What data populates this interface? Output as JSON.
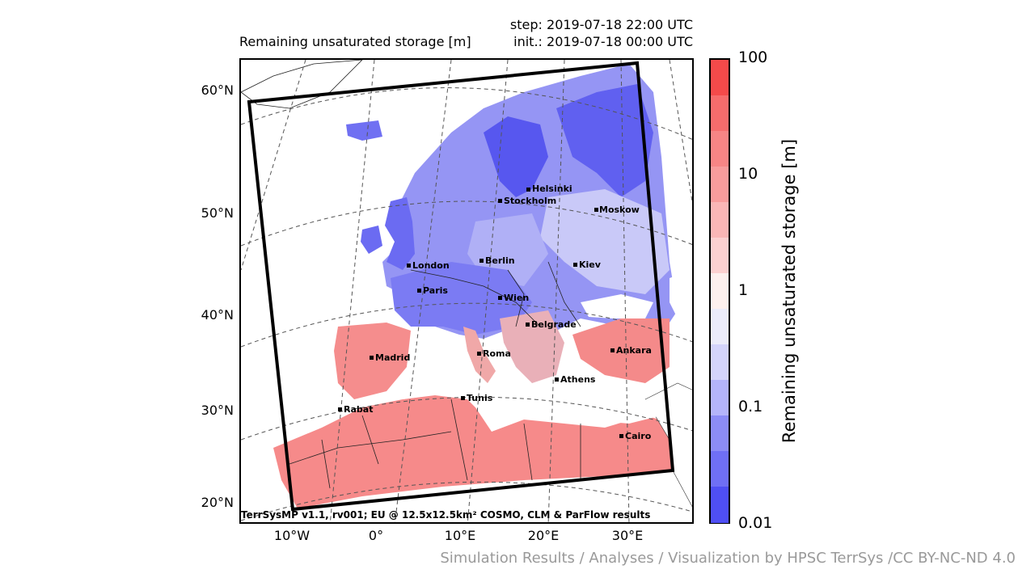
{
  "header": {
    "title": "Remaining unsaturated storage [m]",
    "step": "step: 2019-07-18 22:00 UTC",
    "init": "init.: 2019-07-18 00:00 UTC"
  },
  "map": {
    "lat_labels": [
      "60°N",
      "50°N",
      "40°N",
      "30°N",
      "20°N"
    ],
    "lon_labels": [
      "10°W",
      "0°",
      "10°E",
      "20°E",
      "30°E"
    ],
    "cities": [
      {
        "name": "Helsinki"
      },
      {
        "name": "Stockholm"
      },
      {
        "name": "Moskow"
      },
      {
        "name": "London"
      },
      {
        "name": "Berlin"
      },
      {
        "name": "Kiev"
      },
      {
        "name": "Paris"
      },
      {
        "name": "Wien"
      },
      {
        "name": "Belgrade"
      },
      {
        "name": "Madrid"
      },
      {
        "name": "Roma"
      },
      {
        "name": "Ankara"
      },
      {
        "name": "Athens"
      },
      {
        "name": "Tunis"
      },
      {
        "name": "Rabat"
      },
      {
        "name": "Cairo"
      }
    ],
    "footer": "TerrSysMP v1.1, rv001; EU @ 12.5x12.5km² COSMO, CLM & ParFlow results"
  },
  "colorbar": {
    "label": "Remaining unsaturated storage [m]",
    "ticks": [
      "100",
      "10",
      "1",
      "0.1",
      "0.01"
    ],
    "bands": [
      "#f44a4a",
      "#f66c6c",
      "#f78585",
      "#f89c9c",
      "#fab6b6",
      "#fcd0d0",
      "#fdf0ee",
      "#ececfa",
      "#d4d4fb",
      "#b4b4fa",
      "#8c8cf6",
      "#6f6ff5",
      "#4f4ff4"
    ]
  },
  "attribution": "Simulation Results / Analyses / Visualization by HPSC TerrSys /CC BY-NC-ND 4.0"
}
